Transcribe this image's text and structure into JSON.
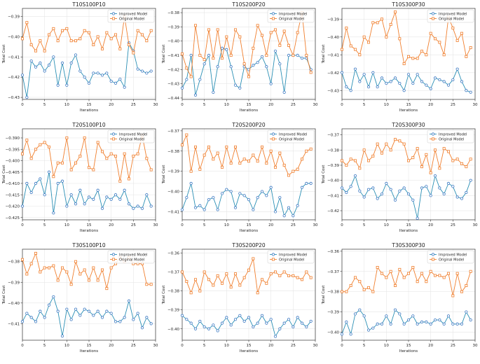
{
  "legend": {
    "improved": "Improved Model",
    "original": "Original Model"
  },
  "colors": {
    "improved": "#3b78c2",
    "original": "#f07f2e",
    "improved_line": "#2a8fb4"
  },
  "chart_data": [
    {
      "type": "line",
      "title": "T10S100P10",
      "xlabel": "Iterations",
      "ylabel": "Total Cost",
      "xlim": [
        0,
        30
      ],
      "ylim": [
        -0.431,
        -0.386
      ],
      "xticks": [
        0,
        5,
        10,
        15,
        20,
        25,
        30
      ],
      "yticks": [
        -0.39,
        -0.4,
        -0.41,
        -0.42,
        -0.43
      ],
      "yticklabels": [
        "−0.39",
        "−0.40",
        "−0.41",
        "−0.42",
        "−0.43"
      ],
      "grid": true,
      "legend_position": "top-right",
      "series": [
        {
          "name": "Improved Model",
          "values": [
            -0.419,
            -0.43,
            -0.412,
            -0.415,
            -0.413,
            -0.417,
            -0.414,
            -0.41,
            -0.424,
            -0.413,
            -0.424,
            -0.413,
            -0.409,
            -0.417,
            -0.42,
            -0.423,
            -0.418,
            -0.418,
            -0.419,
            -0.418,
            -0.422,
            -0.423,
            -0.421,
            -0.425,
            -0.403,
            -0.407,
            -0.416,
            -0.417,
            -0.418,
            -0.417
          ]
        },
        {
          "name": "Original Model",
          "values": [
            -0.401,
            -0.393,
            -0.404,
            -0.407,
            -0.402,
            -0.407,
            -0.399,
            -0.396,
            -0.402,
            -0.397,
            -0.396,
            -0.402,
            -0.402,
            -0.401,
            -0.397,
            -0.398,
            -0.404,
            -0.4,
            -0.406,
            -0.398,
            -0.401,
            -0.399,
            -0.406,
            -0.39,
            -0.404,
            -0.408,
            -0.397,
            -0.399,
            -0.402,
            -0.397
          ]
        }
      ]
    },
    {
      "type": "line",
      "title": "T10S200P20",
      "xlabel": "Iterations",
      "ylabel": "Total Cost",
      "xlim": [
        0,
        30
      ],
      "ylim": [
        -0.441,
        -0.377
      ],
      "xticks": [
        0,
        5,
        10,
        15,
        20,
        25,
        30
      ],
      "yticks": [
        -0.38,
        -0.39,
        -0.4,
        -0.41,
        -0.42,
        -0.43,
        -0.44
      ],
      "yticklabels": [
        "−0.38",
        "−0.39",
        "−0.40",
        "−0.41",
        "−0.42",
        "−0.43",
        "−0.44"
      ],
      "grid": true,
      "legend_position": "top-right",
      "series": [
        {
          "name": "Improved Model",
          "values": [
            -0.433,
            -0.427,
            -0.41,
            -0.438,
            -0.427,
            -0.416,
            -0.41,
            -0.436,
            -0.418,
            -0.405,
            -0.406,
            -0.418,
            -0.431,
            -0.433,
            -0.418,
            -0.42,
            -0.417,
            -0.415,
            -0.411,
            -0.418,
            -0.43,
            -0.407,
            -0.416,
            -0.436,
            -0.41,
            -0.41,
            -0.41,
            -0.412,
            -0.412,
            -0.42
          ]
        },
        {
          "name": "Original Model",
          "values": [
            -0.409,
            -0.419,
            -0.425,
            -0.389,
            -0.41,
            -0.413,
            -0.392,
            -0.412,
            -0.392,
            -0.412,
            -0.397,
            -0.41,
            -0.392,
            -0.397,
            -0.416,
            -0.425,
            -0.405,
            -0.389,
            -0.396,
            -0.41,
            -0.394,
            -0.392,
            -0.403,
            -0.393,
            -0.403,
            -0.41,
            -0.394,
            -0.38,
            -0.41,
            -0.422
          ]
        }
      ]
    },
    {
      "type": "line",
      "title": "T10S300P30",
      "xlabel": "Iterations",
      "ylabel": "Total Cost",
      "xlim": [
        0,
        30
      ],
      "ylim": [
        -0.435,
        -0.384
      ],
      "xticks": [
        0,
        5,
        10,
        15,
        20,
        25,
        30
      ],
      "yticks": [
        -0.39,
        -0.4,
        -0.41,
        -0.42,
        -0.43
      ],
      "yticklabels": [
        "−0.39",
        "−0.40",
        "−0.41",
        "−0.42",
        "−0.43"
      ],
      "grid": true,
      "legend_position": "top-right",
      "series": [
        {
          "name": "Improved Model",
          "values": [
            -0.42,
            -0.428,
            -0.43,
            -0.418,
            -0.425,
            -0.421,
            -0.428,
            -0.42,
            -0.428,
            -0.423,
            -0.426,
            -0.425,
            -0.423,
            -0.426,
            -0.43,
            -0.421,
            -0.426,
            -0.421,
            -0.425,
            -0.427,
            -0.429,
            -0.423,
            -0.424,
            -0.425,
            -0.427,
            -0.424,
            -0.418,
            -0.425,
            -0.43,
            -0.431
          ]
        },
        {
          "name": "Original Model",
          "values": [
            -0.407,
            -0.395,
            -0.405,
            -0.407,
            -0.41,
            -0.4,
            -0.403,
            -0.392,
            -0.392,
            -0.39,
            -0.4,
            -0.393,
            -0.386,
            -0.401,
            -0.415,
            -0.411,
            -0.412,
            -0.412,
            -0.408,
            -0.41,
            -0.398,
            -0.401,
            -0.403,
            -0.41,
            -0.389,
            -0.395,
            -0.402,
            -0.398,
            -0.411,
            -0.406
          ]
        }
      ]
    },
    {
      "type": "line",
      "title": "T20S100P10",
      "xlabel": "Iterations",
      "ylabel": "Total Cost",
      "xlim": [
        0,
        30
      ],
      "ylim": [
        -0.426,
        -0.386
      ],
      "xticks": [
        0,
        5,
        10,
        15,
        20,
        25,
        30
      ],
      "yticks": [
        -0.39,
        -0.395,
        -0.4,
        -0.405,
        -0.41,
        -0.415,
        -0.42,
        -0.425
      ],
      "yticklabels": [
        "−0.390",
        "−0.395",
        "−0.400",
        "−0.405",
        "−0.410",
        "−0.415",
        "−0.420",
        "−0.425"
      ],
      "grid": true,
      "legend_position": "top-right",
      "series": [
        {
          "name": "Improved Model",
          "values": [
            -0.42,
            -0.41,
            -0.414,
            -0.41,
            -0.408,
            -0.415,
            -0.405,
            -0.423,
            -0.41,
            -0.409,
            -0.42,
            -0.415,
            -0.419,
            -0.413,
            -0.419,
            -0.416,
            -0.417,
            -0.413,
            -0.421,
            -0.416,
            -0.417,
            -0.415,
            -0.417,
            -0.413,
            -0.419,
            -0.421,
            -0.42,
            -0.421,
            -0.415,
            -0.42
          ]
        },
        {
          "name": "Original Model",
          "values": [
            -0.397,
            -0.391,
            -0.399,
            -0.395,
            -0.393,
            -0.392,
            -0.394,
            -0.407,
            -0.401,
            -0.401,
            -0.39,
            -0.404,
            -0.401,
            -0.398,
            -0.39,
            -0.403,
            -0.404,
            -0.392,
            -0.396,
            -0.399,
            -0.397,
            -0.398,
            -0.409,
            -0.397,
            -0.408,
            -0.398,
            -0.397,
            -0.389,
            -0.399,
            -0.404
          ]
        }
      ]
    },
    {
      "type": "line",
      "title": "T20S200P20",
      "xlabel": "Iterations",
      "ylabel": "Total Cost",
      "xlim": [
        0,
        30
      ],
      "ylim": [
        -0.414,
        -0.369
      ],
      "xticks": [
        0,
        5,
        10,
        15,
        20,
        25,
        30
      ],
      "yticks": [
        -0.37,
        -0.38,
        -0.39,
        -0.4,
        -0.41
      ],
      "yticklabels": [
        "−0.37",
        "−0.38",
        "−0.39",
        "−0.40",
        "−0.41"
      ],
      "grid": true,
      "legend_position": "top-right",
      "series": [
        {
          "name": "Improved Model",
          "values": [
            -0.409,
            -0.403,
            -0.396,
            -0.408,
            -0.407,
            -0.409,
            -0.404,
            -0.403,
            -0.409,
            -0.401,
            -0.399,
            -0.4,
            -0.408,
            -0.401,
            -0.402,
            -0.404,
            -0.409,
            -0.403,
            -0.4,
            -0.402,
            -0.398,
            -0.41,
            -0.403,
            -0.412,
            -0.408,
            -0.412,
            -0.407,
            -0.398,
            -0.396,
            -0.396
          ]
        },
        {
          "name": "Original Model",
          "values": [
            -0.377,
            -0.372,
            -0.39,
            -0.378,
            -0.389,
            -0.382,
            -0.378,
            -0.384,
            -0.381,
            -0.388,
            -0.378,
            -0.386,
            -0.378,
            -0.386,
            -0.384,
            -0.385,
            -0.382,
            -0.385,
            -0.378,
            -0.386,
            -0.38,
            -0.388,
            -0.381,
            -0.387,
            -0.392,
            -0.39,
            -0.389,
            -0.384,
            -0.38,
            -0.379
          ]
        }
      ]
    },
    {
      "type": "line",
      "title": "T20S300P30",
      "xlabel": "Iterations",
      "ylabel": "Total Cost",
      "xlim": [
        0,
        30
      ],
      "ylim": [
        -0.426,
        -0.366
      ],
      "xticks": [
        0,
        5,
        10,
        15,
        20,
        25,
        30
      ],
      "yticks": [
        -0.37,
        -0.38,
        -0.39,
        -0.4,
        -0.41,
        -0.42
      ],
      "yticklabels": [
        "−0.37",
        "−0.38",
        "−0.39",
        "−0.40",
        "−0.41",
        "−0.42"
      ],
      "grid": true,
      "legend_position": "top-right",
      "series": [
        {
          "name": "Improved Model",
          "values": [
            -0.405,
            -0.408,
            -0.404,
            -0.397,
            -0.407,
            -0.411,
            -0.406,
            -0.405,
            -0.412,
            -0.409,
            -0.402,
            -0.406,
            -0.413,
            -0.407,
            -0.405,
            -0.409,
            -0.413,
            -0.425,
            -0.405,
            -0.404,
            -0.41,
            -0.397,
            -0.405,
            -0.409,
            -0.402,
            -0.404,
            -0.411,
            -0.412,
            -0.408,
            -0.4
          ]
        },
        {
          "name": "Original Model",
          "values": [
            -0.387,
            -0.39,
            -0.386,
            -0.387,
            -0.392,
            -0.38,
            -0.387,
            -0.384,
            -0.376,
            -0.382,
            -0.376,
            -0.38,
            -0.373,
            -0.374,
            -0.376,
            -0.387,
            -0.385,
            -0.379,
            -0.391,
            -0.383,
            -0.395,
            -0.38,
            -0.392,
            -0.379,
            -0.381,
            -0.387,
            -0.386,
            -0.389,
            -0.391,
            -0.386
          ]
        }
      ]
    },
    {
      "type": "line",
      "title": "T30S100P10",
      "xlabel": "Iterations",
      "ylabel": "Total Cost",
      "xlim": [
        0,
        30
      ],
      "ylim": [
        -0.418,
        -0.374
      ],
      "xticks": [
        0,
        5,
        10,
        15,
        20,
        25,
        30
      ],
      "yticks": [
        -0.38,
        -0.39,
        -0.4,
        -0.41
      ],
      "yticklabels": [
        "−0.38",
        "−0.39",
        "−0.40",
        "−0.41"
      ],
      "grid": true,
      "legend_position": "top-right",
      "series": [
        {
          "name": "Improved Model",
          "values": [
            -0.409,
            -0.405,
            -0.407,
            -0.409,
            -0.404,
            -0.407,
            -0.401,
            -0.397,
            -0.404,
            -0.416,
            -0.403,
            -0.408,
            -0.403,
            -0.406,
            -0.403,
            -0.404,
            -0.406,
            -0.404,
            -0.407,
            -0.404,
            -0.405,
            -0.409,
            -0.409,
            -0.407,
            -0.399,
            -0.408,
            -0.405,
            -0.412,
            -0.407,
            -0.41
          ]
        },
        {
          "name": "Original Model",
          "values": [
            -0.379,
            -0.386,
            -0.381,
            -0.376,
            -0.385,
            -0.383,
            -0.383,
            -0.382,
            -0.389,
            -0.383,
            -0.385,
            -0.391,
            -0.38,
            -0.386,
            -0.384,
            -0.389,
            -0.383,
            -0.389,
            -0.384,
            -0.393,
            -0.383,
            -0.381,
            -0.378,
            -0.38,
            -0.378,
            -0.381,
            -0.381,
            -0.381,
            -0.391,
            -0.391
          ]
        }
      ]
    },
    {
      "type": "line",
      "title": "T30S200P20",
      "xlabel": "Iterations",
      "ylabel": "Total Cost",
      "xlim": [
        0,
        30
      ],
      "ylim": [
        -0.406,
        -0.358
      ],
      "xticks": [
        0,
        5,
        10,
        15,
        20,
        25,
        30
      ],
      "yticks": [
        -0.36,
        -0.37,
        -0.38,
        -0.39,
        -0.4
      ],
      "yticklabels": [
        "−0.36",
        "−0.37",
        "−0.38",
        "−0.39",
        "−0.40"
      ],
      "grid": true,
      "legend_position": "top-right",
      "series": [
        {
          "name": "Improved Model",
          "values": [
            -0.393,
            -0.395,
            -0.397,
            -0.4,
            -0.396,
            -0.399,
            -0.4,
            -0.398,
            -0.401,
            -0.397,
            -0.394,
            -0.398,
            -0.395,
            -0.393,
            -0.396,
            -0.394,
            -0.399,
            -0.397,
            -0.393,
            -0.397,
            -0.395,
            -0.404,
            -0.4,
            -0.397,
            -0.395,
            -0.399,
            -0.394,
            -0.397,
            -0.399,
            -0.396
          ]
        },
        {
          "name": "Original Model",
          "values": [
            -0.37,
            -0.375,
            -0.381,
            -0.374,
            -0.38,
            -0.37,
            -0.374,
            -0.377,
            -0.372,
            -0.376,
            -0.371,
            -0.378,
            -0.371,
            -0.377,
            -0.373,
            -0.369,
            -0.363,
            -0.381,
            -0.374,
            -0.376,
            -0.371,
            -0.37,
            -0.372,
            -0.37,
            -0.372,
            -0.372,
            -0.373,
            -0.374,
            -0.37,
            -0.373
          ]
        }
      ]
    },
    {
      "type": "line",
      "title": "T30S300P30",
      "xlabel": "Iterations",
      "ylabel": "Total Cost",
      "xlim": [
        0,
        30
      ],
      "ylim": [
        -0.404,
        -0.359
      ],
      "xticks": [
        0,
        5,
        10,
        15,
        20,
        25,
        30
      ],
      "yticks": [
        -0.36,
        -0.37,
        -0.38,
        -0.39,
        -0.4
      ],
      "yticklabels": [
        "−0.36",
        "−0.37",
        "−0.38",
        "−0.39",
        "−0.40"
      ],
      "grid": true,
      "legend_position": "top-right",
      "series": [
        {
          "name": "Improved Model",
          "values": [
            -0.401,
            -0.395,
            -0.401,
            -0.391,
            -0.389,
            -0.392,
            -0.399,
            -0.398,
            -0.396,
            -0.396,
            -0.392,
            -0.396,
            -0.389,
            -0.391,
            -0.396,
            -0.394,
            -0.392,
            -0.396,
            -0.395,
            -0.395,
            -0.396,
            -0.394,
            -0.394,
            -0.396,
            -0.392,
            -0.396,
            -0.396,
            -0.396,
            -0.39,
            -0.394
          ]
        },
        {
          "name": "Original Model",
          "values": [
            -0.38,
            -0.38,
            -0.377,
            -0.373,
            -0.375,
            -0.379,
            -0.378,
            -0.38,
            -0.368,
            -0.371,
            -0.373,
            -0.37,
            -0.377,
            -0.369,
            -0.373,
            -0.371,
            -0.368,
            -0.375,
            -0.371,
            -0.375,
            -0.37,
            -0.372,
            -0.372,
            -0.373,
            -0.371,
            -0.382,
            -0.371,
            -0.38,
            -0.377,
            -0.37
          ]
        }
      ]
    }
  ]
}
